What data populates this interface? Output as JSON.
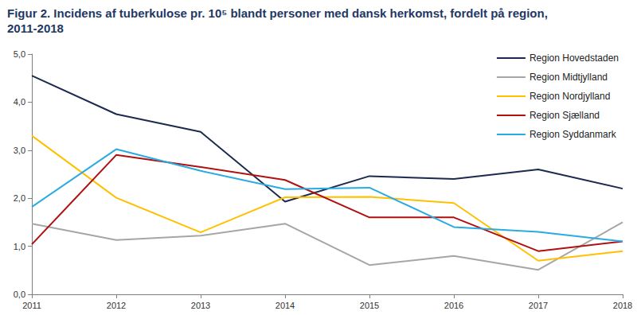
{
  "chart_data": {
    "type": "line",
    "title": "Figur 2. Incidens af tuberkulose pr. 10⁵ blandt personer med dansk herkomst, fordelt på region, 2011-2018",
    "categories": [
      "2011",
      "2012",
      "2013",
      "2014",
      "2015",
      "2016",
      "2017",
      "2018"
    ],
    "series": [
      {
        "name": "Region Hovedstaden",
        "color": "#1b2a4e",
        "values": [
          4.55,
          3.75,
          3.38,
          1.93,
          2.46,
          2.4,
          2.6,
          2.2
        ]
      },
      {
        "name": "Region Midtjylland",
        "color": "#a6a6a6",
        "values": [
          1.47,
          1.13,
          1.22,
          1.47,
          0.61,
          0.8,
          0.51,
          1.5
        ]
      },
      {
        "name": "Region Nordjylland",
        "color": "#ffc000",
        "values": [
          3.3,
          2.01,
          1.29,
          2.02,
          2.03,
          1.9,
          0.7,
          0.9
        ]
      },
      {
        "name": "Region Sjælland",
        "color": "#b01010",
        "values": [
          1.04,
          2.9,
          2.65,
          2.38,
          1.6,
          1.6,
          0.9,
          1.1
        ]
      },
      {
        "name": "Region Syddanmark",
        "color": "#29abe2",
        "values": [
          1.82,
          3.02,
          2.57,
          2.19,
          2.22,
          1.4,
          1.3,
          1.1
        ]
      }
    ],
    "ylim": [
      0,
      5
    ],
    "yticks": [
      {
        "value": 0,
        "label": "0,0"
      },
      {
        "value": 1,
        "label": "1,0"
      },
      {
        "value": 2,
        "label": "2,0"
      },
      {
        "value": 3,
        "label": "3,0"
      },
      {
        "value": 4,
        "label": "4,0"
      },
      {
        "value": 5,
        "label": "5,0"
      }
    ],
    "grid": false,
    "legend": "upper right"
  }
}
